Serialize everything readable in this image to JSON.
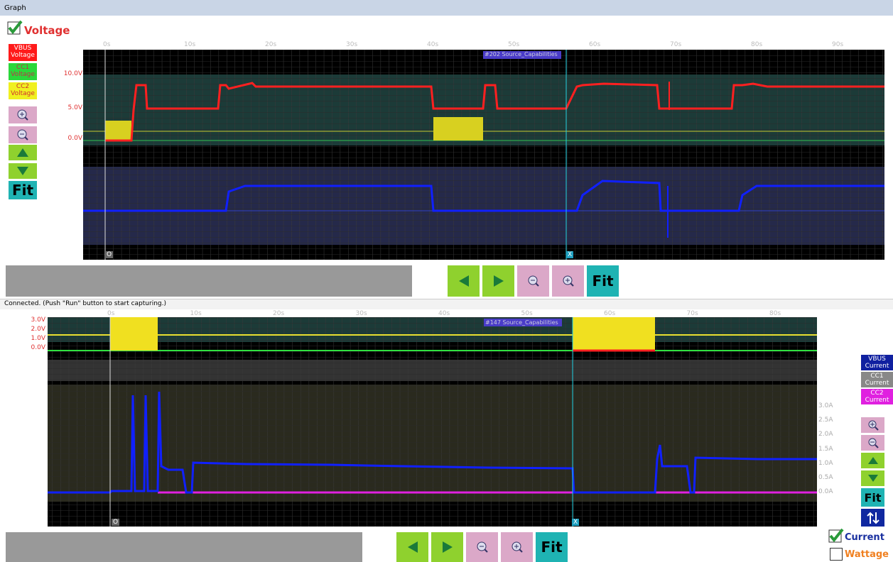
{
  "window": {
    "title": "Graph",
    "status": "Connected.  (Push \"Run\" button to start capturing.)"
  },
  "voltage_graph": {
    "checkbox_label": "Voltage",
    "legend": [
      "VBUS Voltage",
      "CC1 Voltage",
      "CC2 Voltage"
    ],
    "time_ticks": [
      "0s",
      "10s",
      "20s",
      "30s",
      "40s",
      "50s",
      "60s",
      "70s",
      "80s",
      "90s"
    ],
    "y_ticks": [
      "10.0V",
      "5.0V",
      "0.0V"
    ],
    "marker": "#202 Source_Capabilities",
    "cursors": [
      "O",
      "X"
    ]
  },
  "current_graph": {
    "time_ticks": [
      "0s",
      "10s",
      "20s",
      "30s",
      "40s",
      "50s",
      "60s",
      "70s",
      "80s"
    ],
    "voltage_ticks": [
      "3.0V",
      "2.0V",
      "1.0V",
      "0.0V"
    ],
    "current_ticks": [
      "3.0A",
      "2.5A",
      "2.0A",
      "1.5A",
      "1.0A",
      "0.5A",
      "0.0A"
    ],
    "marker": "#147 Source_Capabilities",
    "cursors": [
      "O",
      "X"
    ],
    "legend": [
      "VBUS Current",
      "CC1 Current",
      "CC2 Current"
    ]
  },
  "controls": {
    "fit": "Fit"
  },
  "view_options": [
    "Current",
    "Wattage"
  ]
}
